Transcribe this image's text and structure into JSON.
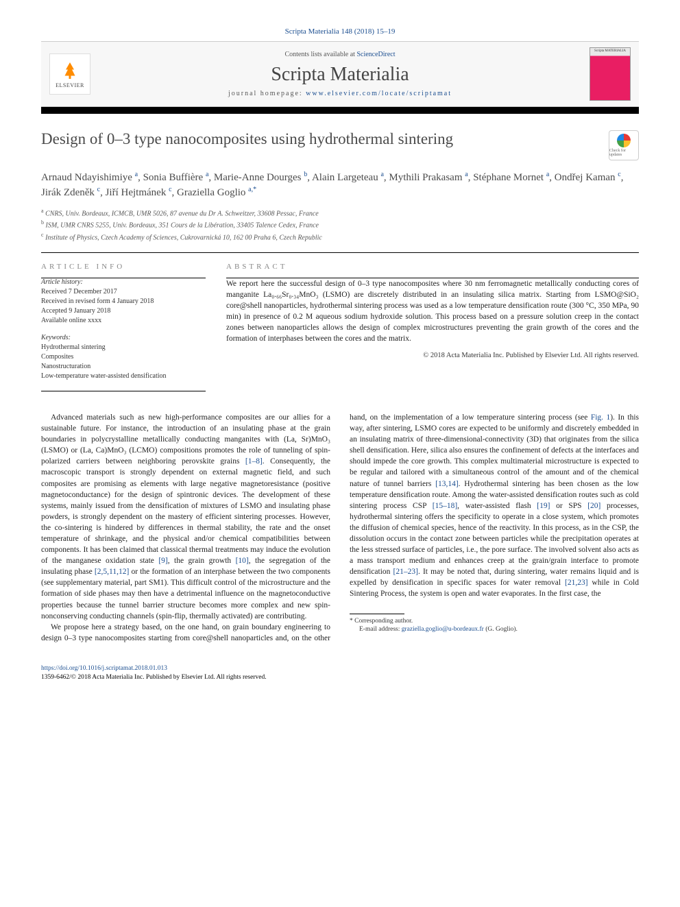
{
  "journal_ref": "Scripta Materialia 148 (2018) 15–19",
  "header": {
    "contents_prefix": "Contents lists available at ",
    "contents_link": "ScienceDirect",
    "journal_name": "Scripta Materialia",
    "homepage_prefix": "journal homepage: ",
    "homepage_link": "www.elsevier.com/locate/scriptamat",
    "publisher": "ELSEVIER",
    "cover_label": "Scripta MATERIALIA"
  },
  "article": {
    "title": "Design of 0–3 type nanocomposites using hydrothermal sintering",
    "crossmark_label": "Check for updates",
    "authors_html": "Arnaud Ndayishimiye <sup>a</sup>, Sonia Buffière <sup>a</sup>, Marie-Anne Dourges <sup>b</sup>, Alain Largeteau <sup>a</sup>, Mythili Prakasam <sup>a</sup>, Stéphane Mornet <sup>a</sup>, Ondřej Kaman <sup>c</sup>, Jirák Zdeněk <sup>c</sup>, Jiří Hejtmánek <sup>c</sup>, Graziella Goglio <sup>a,*</sup>",
    "affiliations": [
      {
        "sup": "a",
        "text": "CNRS, Univ. Bordeaux, ICMCB, UMR 5026, 87 avenue du Dr A. Schweitzer, 33608 Pessac, France"
      },
      {
        "sup": "b",
        "text": "ISM, UMR CNRS 5255, Univ. Bordeaux, 351 Cours de la Libération, 33405 Talence Cedex, France"
      },
      {
        "sup": "c",
        "text": "Institute of Physics, Czech Academy of Sciences, Cukrovarnická 10, 162 00 Praha 6, Czech Republic"
      }
    ]
  },
  "info": {
    "heading": "ARTICLE INFO",
    "history_label": "Article history:",
    "history": [
      "Received 7 December 2017",
      "Received in revised form 4 January 2018",
      "Accepted 9 January 2018",
      "Available online xxxx"
    ],
    "keywords_label": "Keywords:",
    "keywords": [
      "Hydrothermal sintering",
      "Composites",
      "Nanostructuration",
      "Low-temperature water-assisted densification"
    ]
  },
  "abstract": {
    "heading": "ABSTRACT",
    "text": "We report here the successful design of 0–3 type nanocomposites where 30 nm ferromagnetic metallically conducting cores of manganite La₀.₆₆Sr₀.₃₄MnO₃ (LSMO) are discretely distributed in an insulating silica matrix. Starting from LSMO@SiO₂ core@shell nanoparticles, hydrothermal sintering process was used as a low temperature densification route (300 °C, 350 MPa, 90 min) in presence of 0.2 M aqueous sodium hydroxide solution. This process based on a pressure solution creep in the contact zones between nanoparticles allows the design of complex microstructures preventing the grain growth of the cores and the formation of interphases between the cores and the matrix.",
    "copyright": "© 2018 Acta Materialia Inc. Published by Elsevier Ltd. All rights reserved."
  },
  "body": {
    "p1_a": "Advanced materials such as new high-performance composites are our allies for a sustainable future. For instance, the introduction of an insulating phase at the grain boundaries in polycrystalline metallically conducting manganites with (La, Sr)MnO₃ (LSMO) or (La, Ca)MnO₃ (LCMO) compositions promotes the role of tunneling of spin-polarized carriers between neighboring perovskite grains ",
    "p1_ref1": "[1–8]",
    "p1_b": ". Consequently, the macroscopic transport is strongly dependent on external magnetic field, and such composites are promising as elements with large negative magnetoresistance (positive magnetoconductance) for the design of spintronic devices. The development of these systems, mainly issued from the densification of mixtures of LSMO and insulating phase powders, is strongly dependent on the mastery of efficient sintering processes. However, the co-sintering is hindered by differences in thermal stability, the rate and the onset temperature of shrinkage, and the physical and/or chemical compatibilities between components. It has been claimed that classical thermal treatments may induce the evolution of the manganese oxidation state ",
    "p1_ref2": "[9]",
    "p1_c": ", the grain growth ",
    "p1_ref3": "[10]",
    "p1_d": ", the segregation of the insulating phase ",
    "p1_ref4": "[2,5,11,12]",
    "p1_e": " or the formation of an interphase between the two components (see supplementary material, part SM1). This difficult control of the microstructure and the formation of side phases may then have a detrimental influence on the magnetoconductive properties because the tunnel barrier structure becomes more complex and new spin-nonconserving conducting channels (spin-flip, thermally activated) are contributing.",
    "p2_a": "We propose here a strategy based, on the one hand, on grain boundary engineering to design 0–3 type nanocomposites starting from core@shell nanoparticles and, on the other hand, on the implementation of a low temperature sintering process (see ",
    "p2_fig": "Fig. 1",
    "p2_b": "). In this way, after sintering, LSMO cores are expected to be uniformly and discretely embedded in an insulating matrix of three-dimensional-connectivity (3D) that originates from the silica shell densification. Here, silica also ensures the confinement of defects at the interfaces and should impede the core growth. This complex multimaterial microstructure is expected to be regular and tailored with a simultaneous control of the amount and of the chemical nature of tunnel barriers ",
    "p2_ref1": "[13,14]",
    "p2_c": ". Hydrothermal sintering has been chosen as the low temperature densification route. Among the water-assisted densification routes such as cold sintering process CSP ",
    "p2_ref2": "[15–18]",
    "p2_d": ", water-assisted flash ",
    "p2_ref3": "[19]",
    "p2_e": " or SPS ",
    "p2_ref4": "[20]",
    "p2_f": " processes, hydrothermal sintering offers the specificity to operate in a close system, which promotes the diffusion of chemical species, hence of the reactivity. In this process, as in the CSP, the dissolution occurs in the contact zone between particles while the precipitation operates at the less stressed surface of particles, i.e., the pore surface. The involved solvent also acts as a mass transport medium and enhances creep at the grain/grain interface to promote densification ",
    "p2_ref5": "[21–23]",
    "p2_g": ". It may be noted that, during sintering, water remains liquid and is expelled by densification in specific spaces for water removal ",
    "p2_ref6": "[21,23]",
    "p2_h": " while in Cold Sintering Process, the system is open and water evaporates. In the first case, the"
  },
  "footnote": {
    "corresponding": "* Corresponding author.",
    "email_label": "E-mail address: ",
    "email": "graziella.goglio@u-bordeaux.fr",
    "email_name": " (G. Goglio)."
  },
  "footer": {
    "doi": "https://doi.org/10.1016/j.scriptamat.2018.01.013",
    "issn_copyright": "1359-6462/© 2018 Acta Materialia Inc. Published by Elsevier Ltd. All rights reserved."
  },
  "colors": {
    "link": "#1a4d8f",
    "heading_gray": "#888888",
    "title_gray": "#4a4a4a",
    "text": "#222222",
    "elsevier_orange": "#ff6600",
    "cover_pink": "#e91e63"
  }
}
